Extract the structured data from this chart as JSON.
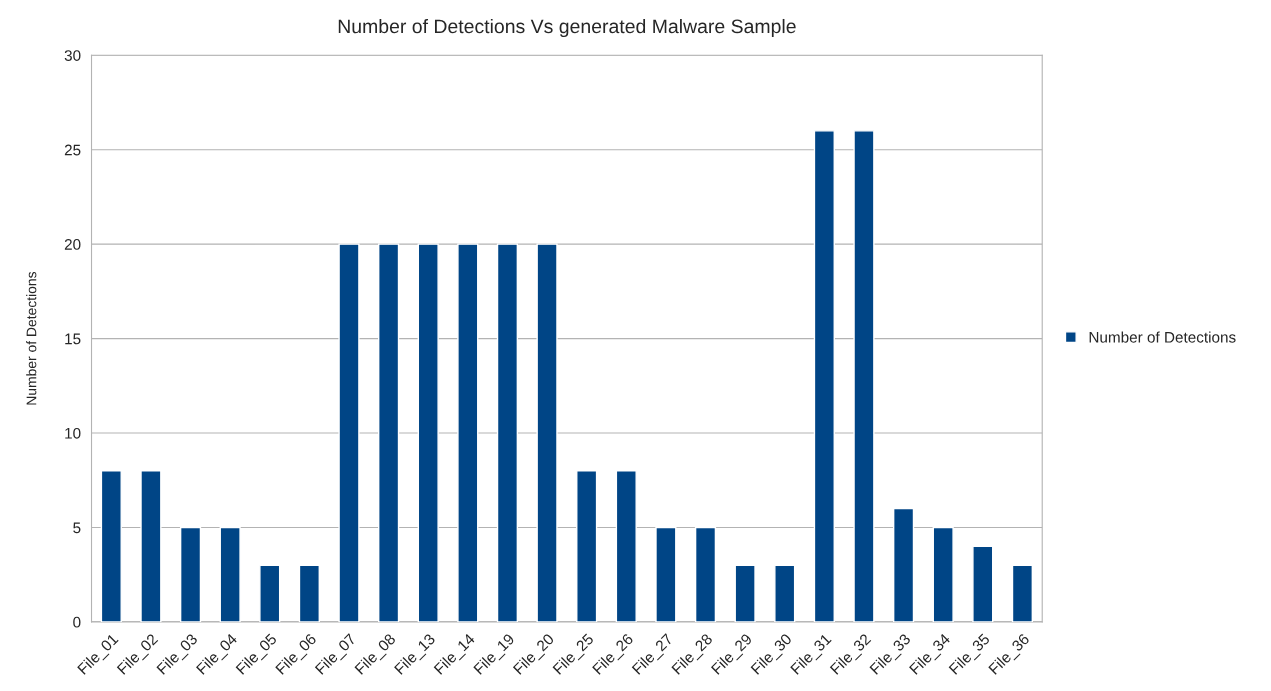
{
  "chart_data": {
    "type": "bar",
    "title": "Number of Detections Vs generated Malware Sample",
    "ylabel": "Number of Detections",
    "categories": [
      "File_01",
      "File_02",
      "File_03",
      "File_04",
      "File_05",
      "File_06",
      "File_07",
      "File_08",
      "File_13",
      "File_14",
      "File_19",
      "File_20",
      "File_25",
      "File_26",
      "File_27",
      "File_28",
      "File_29",
      "File_30",
      "File_31",
      "File_32",
      "File_33",
      "File_34",
      "File_35",
      "File_36"
    ],
    "series": [
      {
        "name": "Number of Detections",
        "color": "#004586",
        "values": [
          8,
          8,
          5,
          5,
          3,
          3,
          20,
          20,
          20,
          20,
          20,
          20,
          8,
          8,
          5,
          5,
          3,
          3,
          26,
          26,
          6,
          5,
          4,
          3
        ]
      }
    ],
    "ylim": [
      0,
      30
    ],
    "yticks": [
      0,
      5,
      10,
      15,
      20,
      25,
      30
    ],
    "grid": "y",
    "legend": "right"
  }
}
